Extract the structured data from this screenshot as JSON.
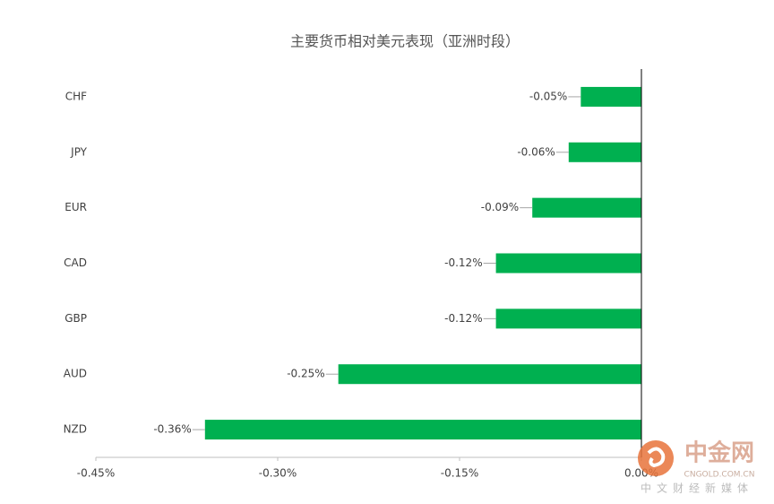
{
  "chart_data": {
    "type": "barh",
    "title": "主要货币相对美元表现（亚洲时段）",
    "categories": [
      "CHF",
      "JPY",
      "EUR",
      "CAD",
      "GBP",
      "AUD",
      "NZD"
    ],
    "values": [
      -0.05,
      -0.06,
      -0.09,
      -0.12,
      -0.12,
      -0.25,
      -0.36
    ],
    "value_labels": [
      "-0.05%",
      "-0.06%",
      "-0.09%",
      "-0.12%",
      "-0.12%",
      "-0.25%",
      "-0.36%"
    ],
    "color": "#00b050",
    "xlim": [
      -0.45,
      0
    ],
    "xticks": [
      {
        "value": -0.45,
        "label": "-0.45%"
      },
      {
        "value": -0.3,
        "label": "-0.30%"
      },
      {
        "value": -0.15,
        "label": "-0.15%"
      },
      {
        "value": 0,
        "label": "0.00%"
      }
    ]
  },
  "watermark": {
    "name": "中金网",
    "domain": "CNGOLD.COM.CN",
    "slogan": "中文财经新媒体"
  }
}
